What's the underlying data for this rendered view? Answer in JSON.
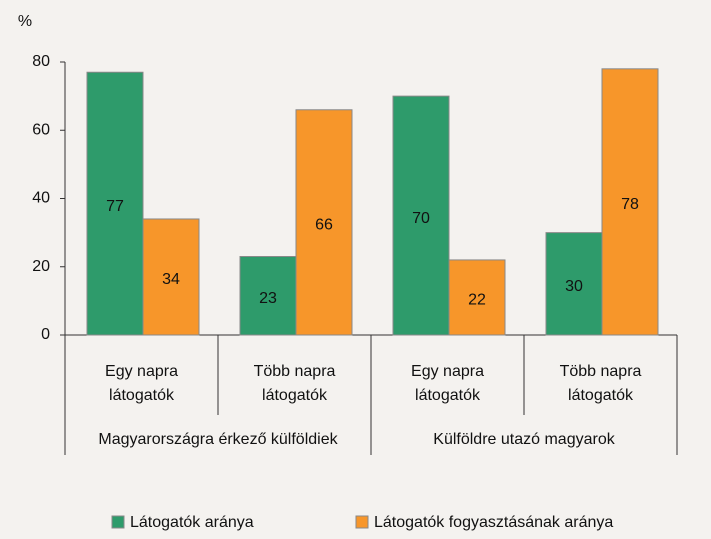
{
  "chart_data": {
    "type": "bar",
    "y_label": "%",
    "categories": [
      "Egy napra látogatók",
      "Több napra látogatók",
      "Egy napra látogatók",
      "Több napra látogatók"
    ],
    "groups": [
      "Magyarországra érkező külföldiek",
      "Külföldre utazó magyarok"
    ],
    "series": [
      {
        "name": "Látogatók aránya",
        "color": "#2e9b6b",
        "values": [
          77,
          23,
          70,
          30
        ]
      },
      {
        "name": "Látogatók fogyasztásának aránya",
        "color": "#f7962a",
        "values": [
          34,
          66,
          22,
          78
        ]
      }
    ],
    "ylim": [
      0,
      80
    ],
    "yticks": [
      0,
      20,
      40,
      60,
      80
    ],
    "grid": false,
    "legend": "bottom"
  }
}
